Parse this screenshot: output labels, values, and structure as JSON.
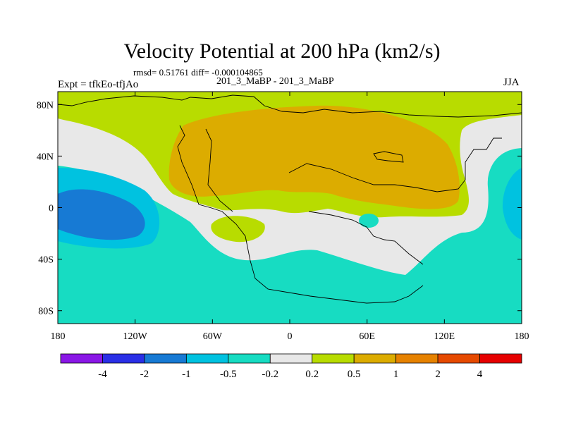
{
  "chart_data": {
    "type": "heatmap",
    "title": "Velocity Potential at 200 hPa (km2/s)",
    "stats_text": "rmsd= 0.51761 diff= -0.000104865",
    "left_label": "Expt = tfkEo-tfjAo",
    "center_label": "201_3_MaBP - 201_3_MaBP",
    "right_label": "JJA",
    "x_ticks": [
      "180",
      "120W",
      "60W",
      "0",
      "60E",
      "120E",
      "180"
    ],
    "y_ticks": [
      "80N",
      "40N",
      "0",
      "40S",
      "80S"
    ],
    "xlim": [
      -180,
      180
    ],
    "ylim": [
      -90,
      90
    ],
    "levels": [
      "-4",
      "-2",
      "-1",
      "-0.5",
      "-0.2",
      "0.2",
      "0.5",
      "1",
      "2",
      "4"
    ],
    "colors": [
      "#8a17e6",
      "#2a2fe6",
      "#177ad4",
      "#00c2e0",
      "#17dcc2",
      "#e8e8e8",
      "#b8dc00",
      "#dcac00",
      "#e68200",
      "#e64a00",
      "#e60000"
    ],
    "regions": [
      {
        "value": "0.2 to 0.5",
        "description": "northern high latitudes band"
      },
      {
        "value": "0.5 to 1",
        "description": "Eurasia / Africa / Indian Ocean maximum"
      },
      {
        "value": "-0.5 to -0.2",
        "description": "Southern Hemisphere and eastern Pacific"
      },
      {
        "value": "-1 to -0.5",
        "description": "central Pacific"
      },
      {
        "value": "-2 to -1",
        "description": "central Pacific minimum near 160W, 0"
      }
    ]
  }
}
